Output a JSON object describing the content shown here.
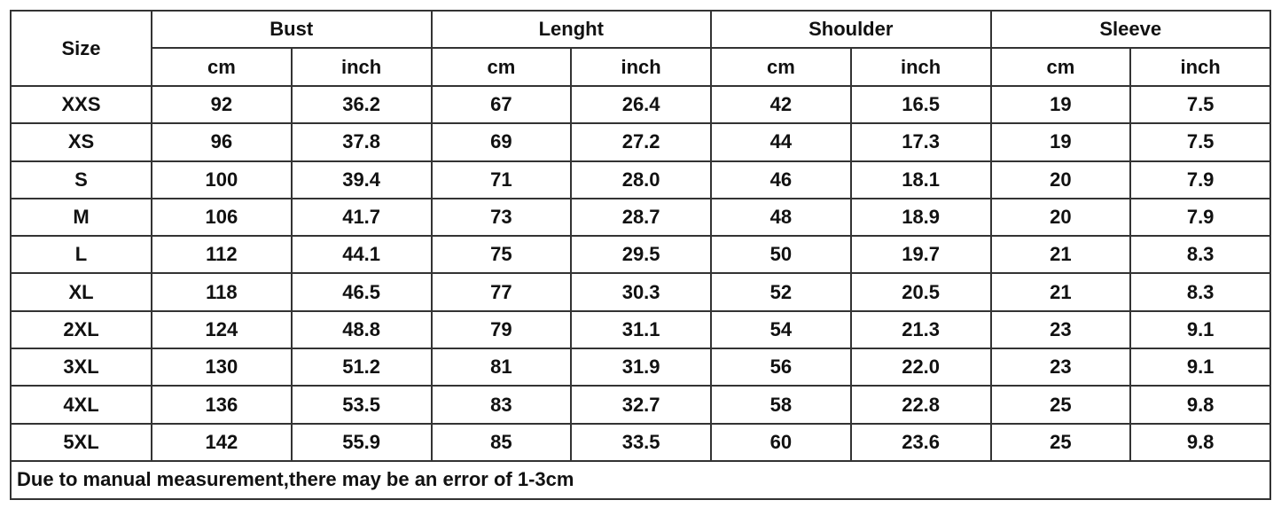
{
  "table": {
    "size_header": "Size",
    "groups": [
      "Bust",
      "Lenght",
      "Shoulder",
      "Sleeve"
    ],
    "units": [
      "cm",
      "inch"
    ],
    "rows": [
      [
        "XXS",
        "92",
        "36.2",
        "67",
        "26.4",
        "42",
        "16.5",
        "19",
        "7.5"
      ],
      [
        "XS",
        "96",
        "37.8",
        "69",
        "27.2",
        "44",
        "17.3",
        "19",
        "7.5"
      ],
      [
        "S",
        "100",
        "39.4",
        "71",
        "28.0",
        "46",
        "18.1",
        "20",
        "7.9"
      ],
      [
        "M",
        "106",
        "41.7",
        "73",
        "28.7",
        "48",
        "18.9",
        "20",
        "7.9"
      ],
      [
        "L",
        "112",
        "44.1",
        "75",
        "29.5",
        "50",
        "19.7",
        "21",
        "8.3"
      ],
      [
        "XL",
        "118",
        "46.5",
        "77",
        "30.3",
        "52",
        "20.5",
        "21",
        "8.3"
      ],
      [
        "2XL",
        "124",
        "48.8",
        "79",
        "31.1",
        "54",
        "21.3",
        "23",
        "9.1"
      ],
      [
        "3XL",
        "130",
        "51.2",
        "81",
        "31.9",
        "56",
        "22.0",
        "23",
        "9.1"
      ],
      [
        "4XL",
        "136",
        "53.5",
        "83",
        "32.7",
        "58",
        "22.8",
        "25",
        "9.8"
      ],
      [
        "5XL",
        "142",
        "55.9",
        "85",
        "33.5",
        "60",
        "23.6",
        "25",
        "9.8"
      ]
    ],
    "note": "Due to manual measurement,there may be an error of 1-3cm"
  }
}
